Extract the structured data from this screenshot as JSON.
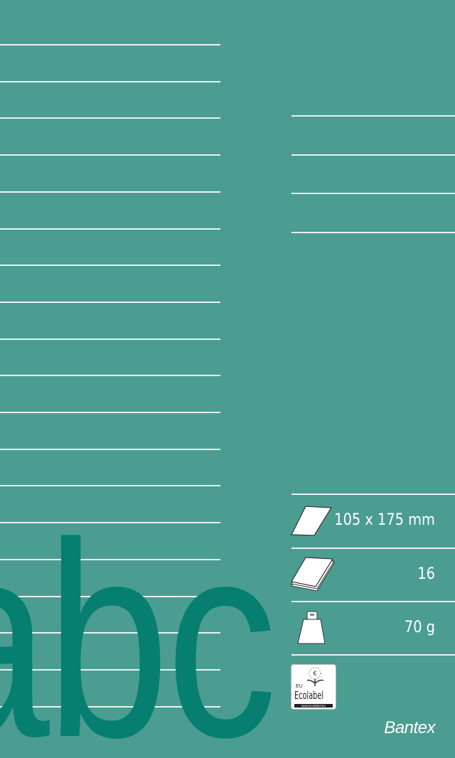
{
  "cover": {
    "letters": "abc",
    "colors": {
      "background": "#4b9d91",
      "letters": "#067f71",
      "lines": "#e8f3f1"
    }
  },
  "specs": [
    {
      "icon": "sheet-size-icon",
      "value": "105 x 175 mm"
    },
    {
      "icon": "sheet-count-icon",
      "value": "16"
    },
    {
      "icon": "paper-weight-icon",
      "value": "70 g"
    }
  ],
  "ecolabel": {
    "prefix": "EU",
    "name": "Ecolabel",
    "url": "www.ecolabel.eu"
  },
  "brand": "Bantex"
}
